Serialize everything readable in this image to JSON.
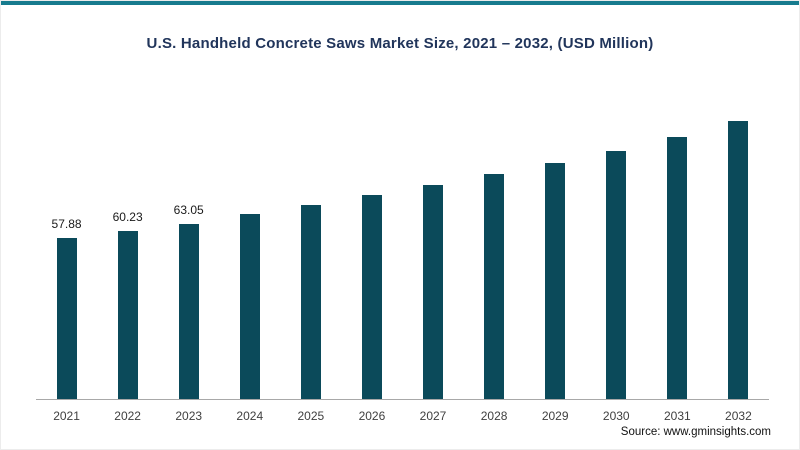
{
  "chart_data": {
    "type": "bar",
    "title": "U.S. Handheld Concrete Saws Market Size, 2021 – 2032, (USD Million)",
    "categories": [
      "2021",
      "2022",
      "2023",
      "2024",
      "2025",
      "2026",
      "2027",
      "2028",
      "2029",
      "2030",
      "2031",
      "2032"
    ],
    "values": [
      57.88,
      60.23,
      63.05,
      66.5,
      69.8,
      73.2,
      76.9,
      80.9,
      84.8,
      89.2,
      94.2,
      99.9
    ],
    "data_labels": [
      "57.88",
      "60.23",
      "63.05",
      "",
      "",
      "",
      "",
      "",
      "",
      "",
      "",
      ""
    ],
    "xlabel": "",
    "ylabel": "",
    "ylim": [
      0,
      115
    ],
    "grid": false,
    "legend": "none",
    "bar_color": "#0b4a5a"
  },
  "accent_color": "#177b8e",
  "source": "Source: www.gminsights.com"
}
